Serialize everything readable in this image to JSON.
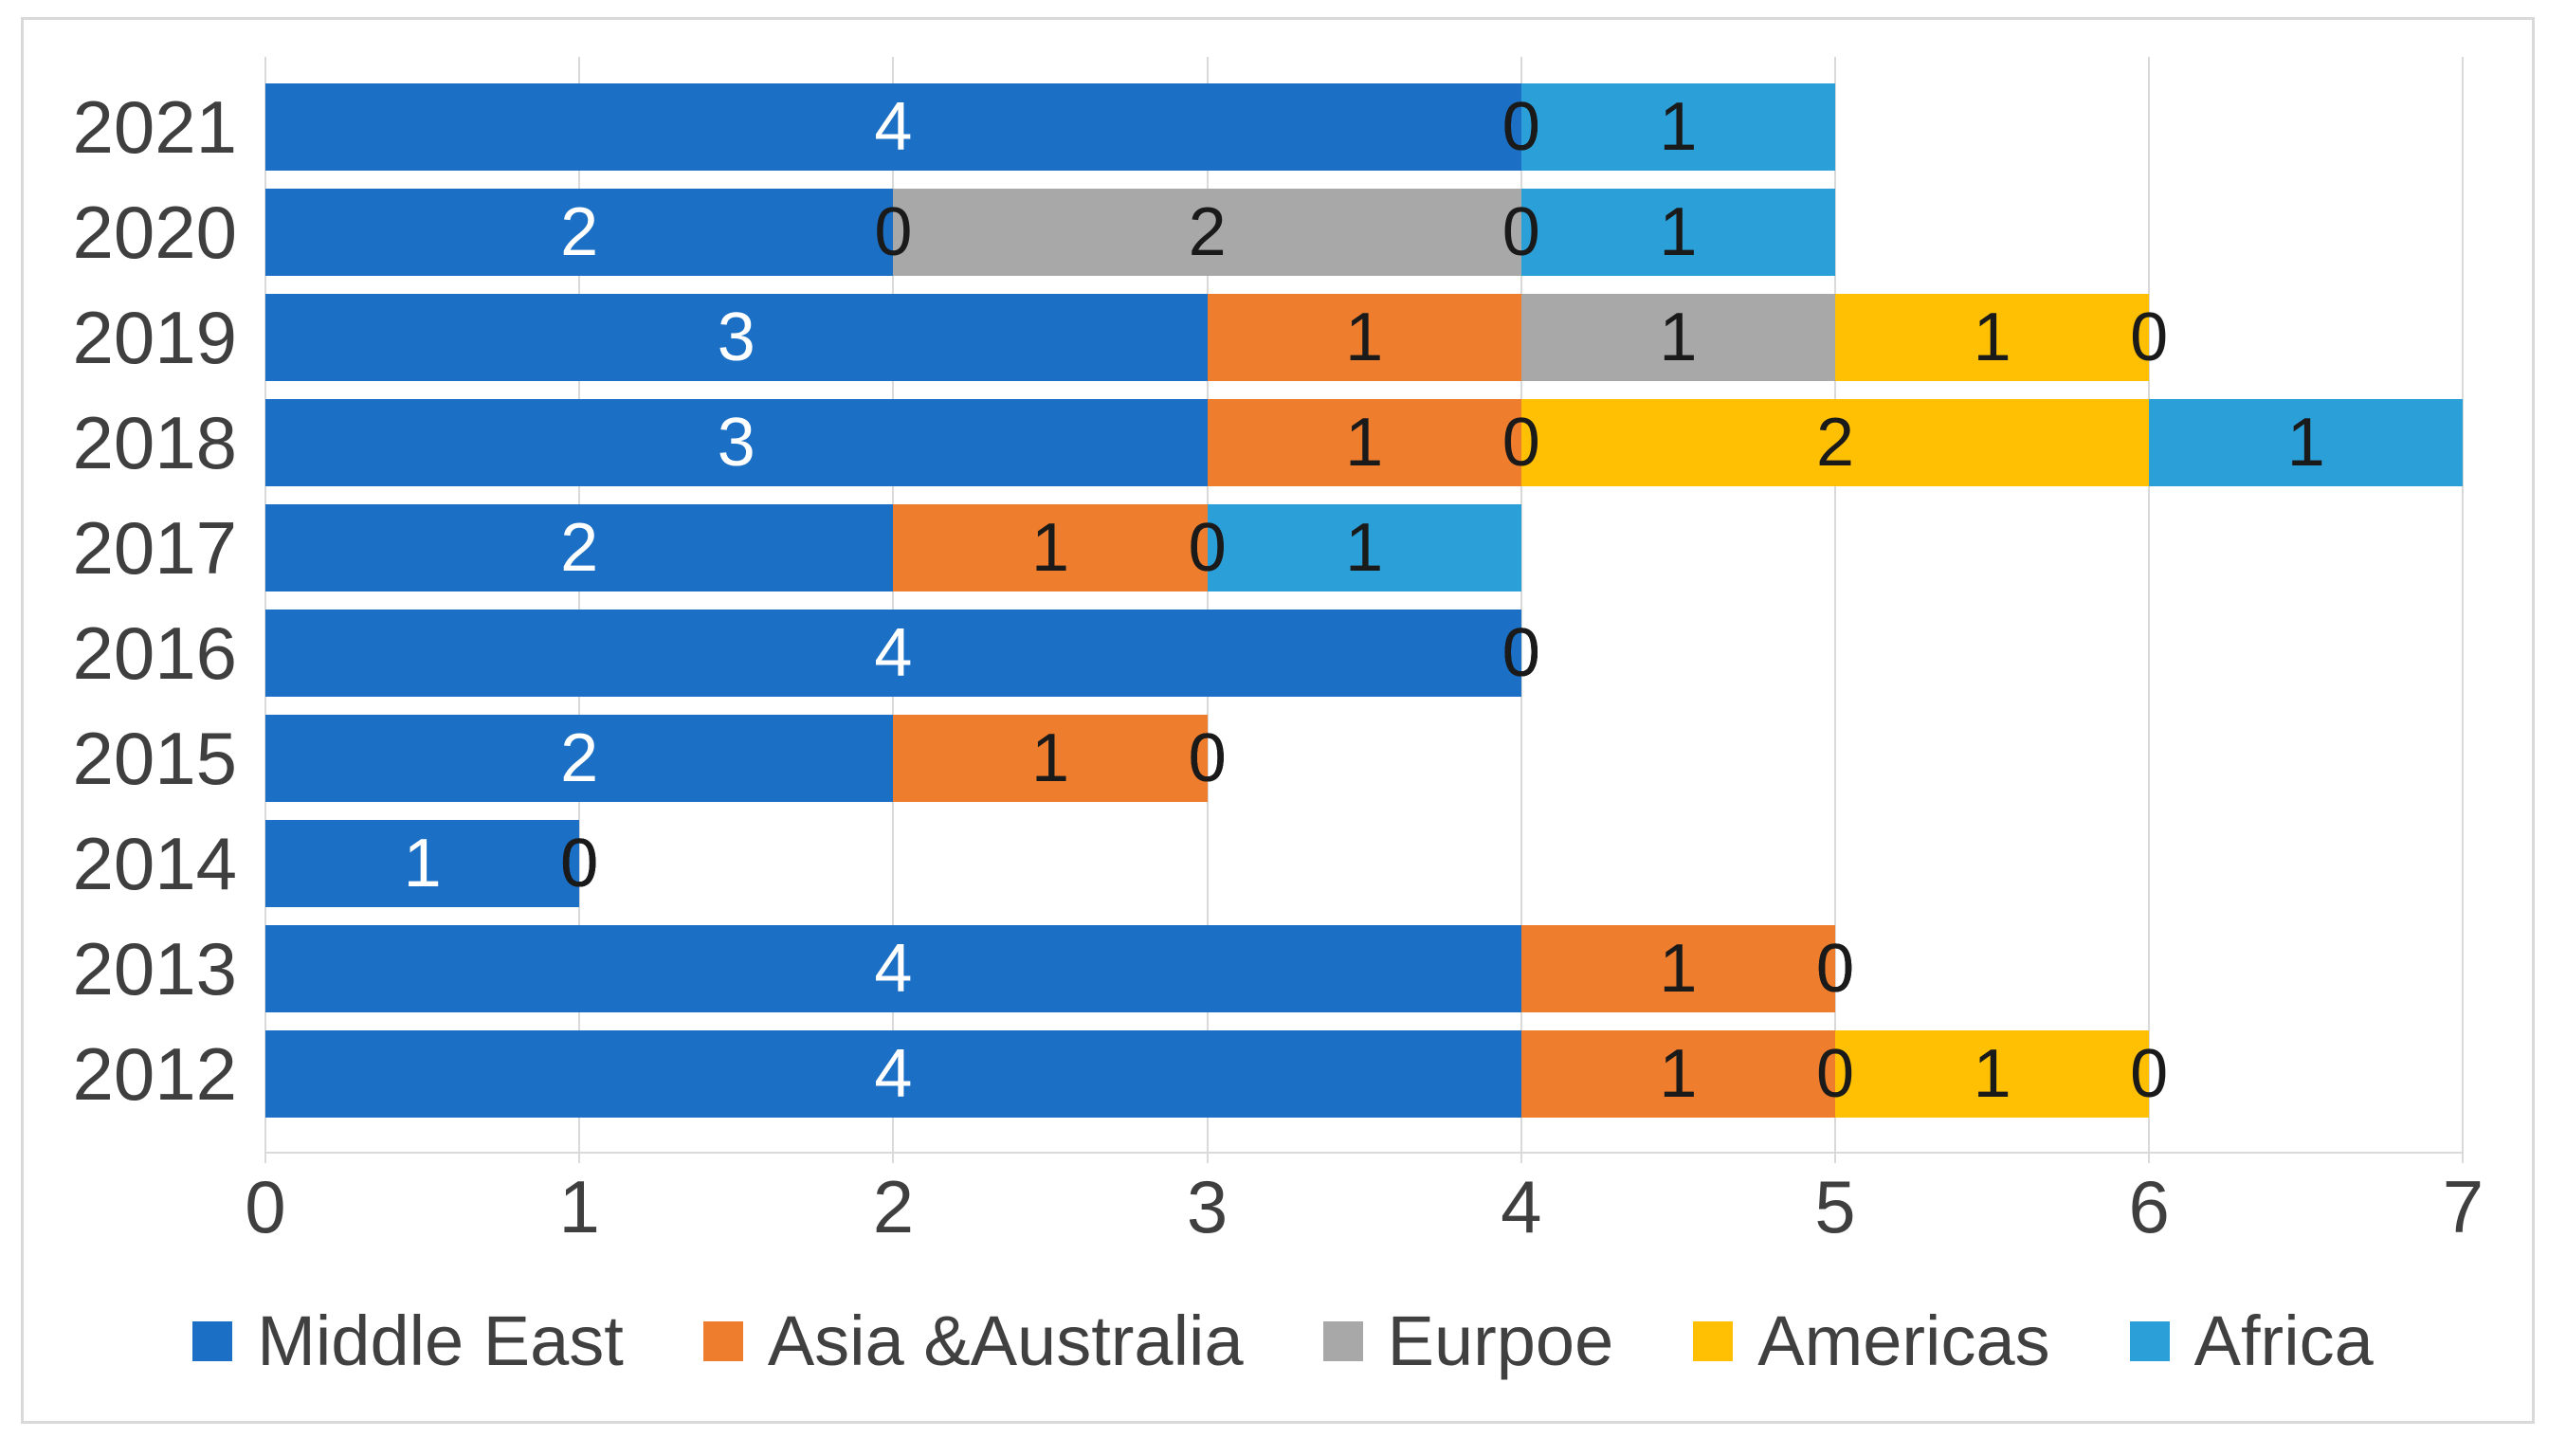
{
  "chart_data": {
    "type": "bar",
    "orientation": "horizontal",
    "stacked": true,
    "title": "",
    "xlabel": "",
    "ylabel": "",
    "categories": [
      "2021",
      "2020",
      "2019",
      "2018",
      "2017",
      "2016",
      "2015",
      "2014",
      "2013",
      "2012"
    ],
    "series": [
      {
        "name": "Middle East",
        "color": "#1b6fc4",
        "values": [
          4,
          2,
          3,
          3,
          2,
          4,
          2,
          1,
          4,
          4
        ]
      },
      {
        "name": "Asia &Australia",
        "color": "#ee7d2e",
        "values": [
          0,
          0,
          1,
          1,
          1,
          0,
          1,
          0,
          1,
          1
        ]
      },
      {
        "name": "Eurpoe",
        "color": "#a8a8a8",
        "values": [
          0,
          2,
          1,
          0,
          0,
          0,
          0,
          0,
          0,
          0
        ]
      },
      {
        "name": "Americas",
        "color": "#ffc003",
        "values": [
          0,
          0,
          1,
          2,
          0,
          0,
          0,
          0,
          0,
          1
        ]
      },
      {
        "name": "Africa",
        "color": "#2b9fd8",
        "values": [
          1,
          1,
          0,
          1,
          1,
          0,
          0,
          0,
          0,
          0
        ]
      }
    ],
    "x_ticks": [
      "0",
      "1",
      "2",
      "3",
      "4",
      "5",
      "6",
      "7"
    ],
    "xlim": [
      0,
      7
    ],
    "grid": true,
    "data_labels": true,
    "legend_position": "bottom",
    "colors": {
      "gridline": "#d9d9d9",
      "frame_border": "#d9d9d9",
      "label_on_first_series": "#ffffff",
      "label_on_other_series": "#1a1a1a",
      "axis_text": "#3f3f3f",
      "legend_text": "#404040"
    }
  }
}
